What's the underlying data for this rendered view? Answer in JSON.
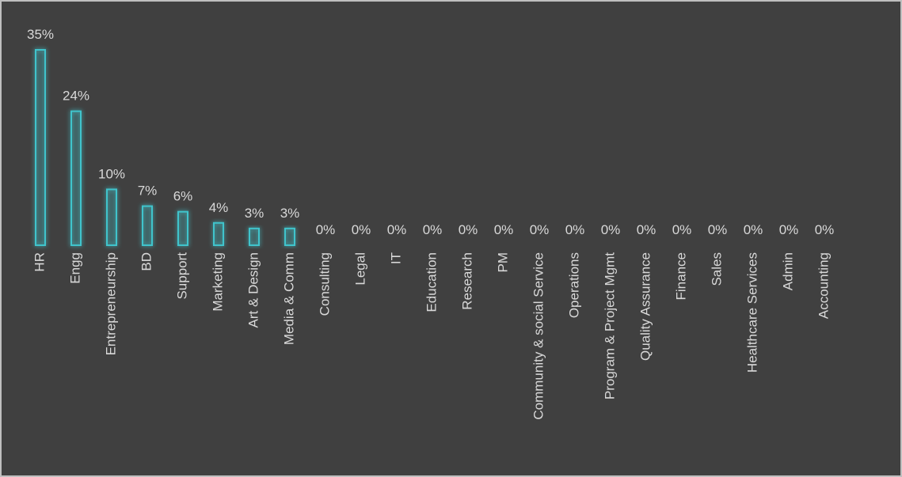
{
  "chart_data": {
    "type": "bar",
    "categories": [
      "HR",
      "Engg",
      "Entrepreneurship",
      "BD",
      "Support",
      "Marketing",
      "Art & Design",
      "Media & Comm",
      "Consulting",
      "Legal",
      "IT",
      "Education",
      "Research",
      "PM",
      "Community & social Service",
      "Operations",
      "Program & Project Mgmt",
      "Quality Assurance",
      "Finance",
      "Sales",
      "Healthcare Services",
      "Admin",
      "Accounting"
    ],
    "values": [
      35,
      24,
      10,
      7,
      6,
      4,
      3,
      3,
      0,
      0,
      0,
      0,
      0,
      0,
      0,
      0,
      0,
      0,
      0,
      0,
      0,
      0,
      0
    ],
    "value_labels": [
      "35%",
      "24%",
      "10%",
      "7%",
      "6%",
      "4%",
      "3%",
      "3%",
      "0%",
      "0%",
      "0%",
      "0%",
      "0%",
      "0%",
      "0%",
      "0%",
      "0%",
      "0%",
      "0%",
      "0%",
      "0%",
      "0%",
      "0%"
    ],
    "color": "#3fc4cc"
  }
}
